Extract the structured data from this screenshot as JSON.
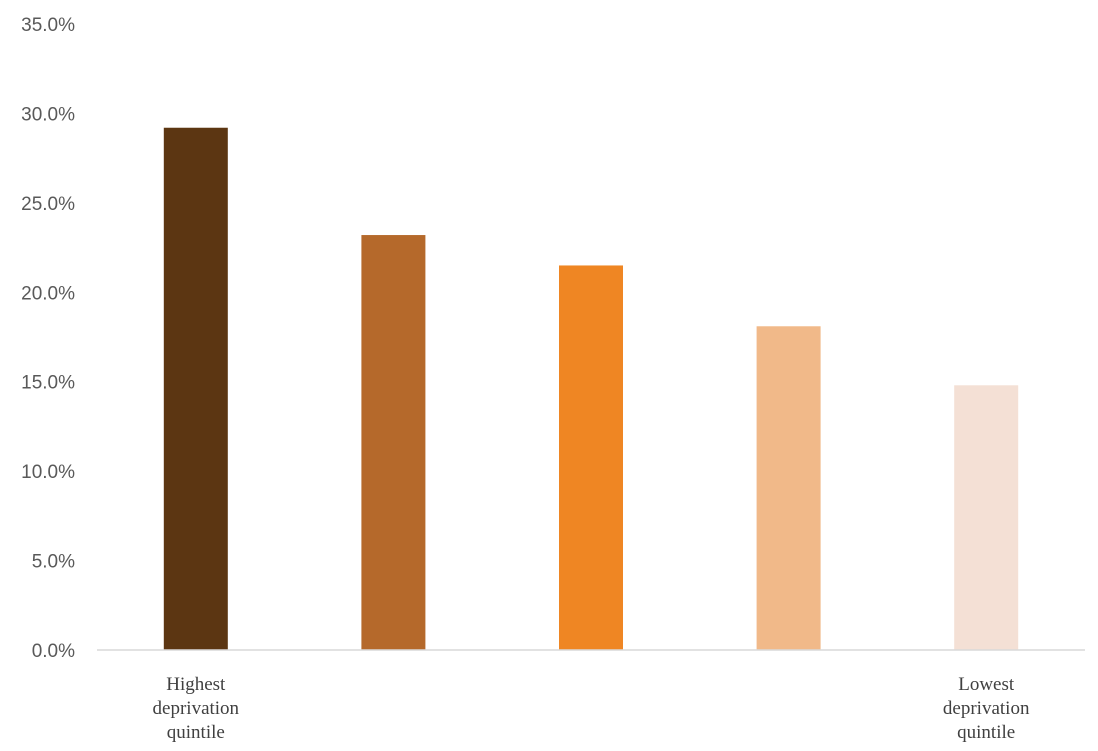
{
  "chart_data": {
    "type": "bar",
    "categories": [
      [
        "Highest",
        "deprivation",
        "quintile"
      ],
      [],
      [],
      [],
      [
        "Lowest",
        "deprivation",
        "quintile"
      ]
    ],
    "values": [
      29.2,
      23.2,
      21.5,
      18.1,
      14.8
    ],
    "colors": [
      "#5c3612",
      "#b5692b",
      "#ef8623",
      "#f1b989",
      "#f4e0d5"
    ],
    "ylim": [
      0,
      35
    ],
    "yticks": [
      0,
      5,
      10,
      15,
      20,
      25,
      30,
      35
    ],
    "ytick_labels": [
      "0.0%",
      "5.0%",
      "10.0%",
      "15.0%",
      "20.0%",
      "25.0%",
      "30.0%",
      "35.0%"
    ],
    "title": "",
    "xlabel": "",
    "ylabel": "",
    "grid": false,
    "legend": "none"
  }
}
